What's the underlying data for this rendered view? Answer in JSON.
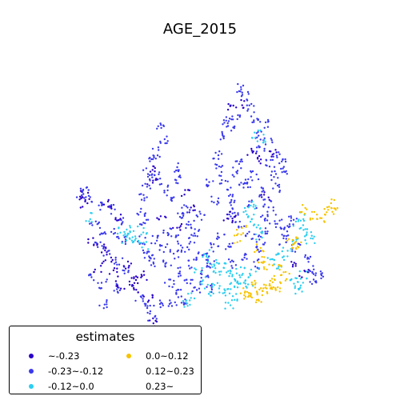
{
  "title": "AGE_2015",
  "legend": {
    "title": "estimates",
    "items": [
      {
        "label": "~-0.23",
        "color": "#2a00c9"
      },
      {
        "label": "-0.23~-0.12",
        "color": "#3a39ee"
      },
      {
        "label": "-0.12~0.0",
        "color": "#2ccef0"
      },
      {
        "label": "0.0~0.12",
        "color": "#f7c300"
      },
      {
        "label": "0.12~0.23",
        "color": "none"
      },
      {
        "label": "0.23~",
        "color": "none"
      }
    ]
  },
  "points": {
    "dark_blue": [
      [
        106,
        243
      ],
      [
        104,
        254
      ],
      [
        135,
        255
      ],
      [
        148,
        270
      ],
      [
        172,
        348
      ],
      [
        160,
        330
      ],
      [
        165,
        352
      ],
      [
        185,
        372
      ],
      [
        190,
        404
      ],
      [
        188,
        210
      ],
      [
        190,
        226
      ],
      [
        232,
        242
      ],
      [
        238,
        262
      ],
      [
        290,
        135
      ],
      [
        300,
        130
      ],
      [
        315,
        190
      ],
      [
        322,
        200
      ],
      [
        332,
        245
      ],
      [
        340,
        190
      ],
      [
        135,
        322
      ],
      [
        142,
        340
      ],
      [
        150,
        356
      ],
      [
        168,
        360
      ],
      [
        178,
        345
      ],
      [
        202,
        270
      ],
      [
        222,
        285
      ],
      [
        282,
        270
      ],
      [
        292,
        275
      ],
      [
        370,
        330
      ],
      [
        380,
        342
      ],
      [
        122,
        335
      ],
      [
        116,
        302
      ],
      [
        128,
        310
      ]
    ],
    "mid_blue": [
      [
        100,
        242
      ],
      [
        110,
        248
      ],
      [
        105,
        238
      ],
      [
        125,
        258
      ],
      [
        140,
        262
      ],
      [
        152,
        275
      ],
      [
        118,
        278
      ],
      [
        130,
        288
      ],
      [
        145,
        292
      ],
      [
        155,
        300
      ],
      [
        122,
        305
      ],
      [
        134,
        315
      ],
      [
        148,
        325
      ],
      [
        158,
        338
      ],
      [
        112,
        345
      ],
      [
        128,
        355
      ],
      [
        145,
        360
      ],
      [
        178,
        300
      ],
      [
        183,
        318
      ],
      [
        192,
        328
      ],
      [
        175,
        370
      ],
      [
        182,
        380
      ],
      [
        190,
        395
      ],
      [
        198,
        380
      ],
      [
        185,
        320
      ],
      [
        195,
        300
      ],
      [
        205,
        310
      ],
      [
        210,
        330
      ],
      [
        218,
        318
      ],
      [
        225,
        340
      ],
      [
        235,
        350
      ],
      [
        245,
        360
      ],
      [
        255,
        348
      ],
      [
        262,
        360
      ],
      [
        212,
        355
      ],
      [
        222,
        368
      ],
      [
        232,
        375
      ],
      [
        200,
        160
      ],
      [
        205,
        175
      ],
      [
        195,
        190
      ],
      [
        190,
        200
      ],
      [
        185,
        215
      ],
      [
        182,
        230
      ],
      [
        178,
        245
      ],
      [
        176,
        265
      ],
      [
        180,
        280
      ],
      [
        195,
        220
      ],
      [
        205,
        235
      ],
      [
        212,
        250
      ],
      [
        218,
        210
      ],
      [
        225,
        225
      ],
      [
        228,
        270
      ],
      [
        238,
        280
      ],
      [
        242,
        300
      ],
      [
        210,
        290
      ],
      [
        220,
        300
      ],
      [
        232,
        312
      ],
      [
        244,
        290
      ],
      [
        250,
        270
      ],
      [
        262,
        230
      ],
      [
        268,
        250
      ],
      [
        272,
        195
      ],
      [
        275,
        210
      ],
      [
        280,
        225
      ],
      [
        285,
        240
      ],
      [
        288,
        255
      ],
      [
        292,
        265
      ],
      [
        296,
        215
      ],
      [
        300,
        200
      ],
      [
        305,
        230
      ],
      [
        278,
        170
      ],
      [
        282,
        150
      ],
      [
        288,
        160
      ],
      [
        295,
        145
      ],
      [
        302,
        110
      ],
      [
        308,
        120
      ],
      [
        312,
        135
      ],
      [
        318,
        150
      ],
      [
        322,
        170
      ],
      [
        325,
        185
      ],
      [
        330,
        155
      ],
      [
        335,
        175
      ],
      [
        338,
        205
      ],
      [
        342,
        220
      ],
      [
        346,
        195
      ],
      [
        352,
        205
      ],
      [
        355,
        212
      ],
      [
        345,
        235
      ],
      [
        335,
        255
      ],
      [
        340,
        265
      ],
      [
        332,
        275
      ],
      [
        348,
        280
      ],
      [
        355,
        290
      ],
      [
        352,
        300
      ],
      [
        360,
        285
      ],
      [
        365,
        275
      ],
      [
        370,
        310
      ],
      [
        382,
        325
      ],
      [
        388,
        338
      ],
      [
        392,
        350
      ],
      [
        398,
        345
      ],
      [
        300,
        280
      ],
      [
        312,
        295
      ],
      [
        320,
        310
      ],
      [
        305,
        320
      ],
      [
        292,
        330
      ],
      [
        285,
        310
      ],
      [
        275,
        295
      ],
      [
        268,
        310
      ],
      [
        262,
        322
      ],
      [
        250,
        320
      ],
      [
        258,
        335
      ],
      [
        240,
        330
      ],
      [
        320,
        330
      ],
      [
        330,
        290
      ],
      [
        326,
        300
      ],
      [
        315,
        255
      ],
      [
        325,
        240
      ],
      [
        318,
        220
      ],
      [
        310,
        230
      ],
      [
        128,
        380
      ],
      [
        215,
        380
      ],
      [
        232,
        262
      ]
    ],
    "cyan": [
      [
        112,
        272
      ],
      [
        150,
        290
      ],
      [
        158,
        298
      ],
      [
        165,
        296
      ],
      [
        172,
        302
      ],
      [
        180,
        306
      ],
      [
        178,
        288
      ],
      [
        162,
        285
      ],
      [
        258,
        318
      ],
      [
        264,
        330
      ],
      [
        270,
        340
      ],
      [
        276,
        325
      ],
      [
        282,
        335
      ],
      [
        288,
        345
      ],
      [
        294,
        352
      ],
      [
        300,
        338
      ],
      [
        306,
        345
      ],
      [
        312,
        355
      ],
      [
        318,
        340
      ],
      [
        270,
        355
      ],
      [
        262,
        365
      ],
      [
        278,
        365
      ],
      [
        290,
        360
      ],
      [
        300,
        358
      ],
      [
        248,
        340
      ],
      [
        254,
        352
      ],
      [
        320,
        168
      ],
      [
        326,
        174
      ],
      [
        318,
        255
      ],
      [
        310,
        265
      ],
      [
        316,
        272
      ],
      [
        322,
        280
      ],
      [
        340,
        322
      ],
      [
        346,
        330
      ],
      [
        352,
        320
      ],
      [
        360,
        315
      ],
      [
        372,
        280
      ],
      [
        378,
        270
      ],
      [
        384,
        285
      ],
      [
        388,
        300
      ],
      [
        378,
        295
      ],
      [
        370,
        300
      ],
      [
        366,
        350
      ],
      [
        374,
        358
      ],
      [
        380,
        345
      ],
      [
        372,
        365
      ],
      [
        286,
        380
      ],
      [
        292,
        372
      ],
      [
        232,
        378
      ],
      [
        238,
        372
      ],
      [
        322,
        296
      ]
    ],
    "yellow": [
      [
        302,
        288
      ],
      [
        296,
        298
      ],
      [
        318,
        350
      ],
      [
        324,
        360
      ],
      [
        330,
        365
      ],
      [
        336,
        355
      ],
      [
        342,
        348
      ],
      [
        310,
        365
      ],
      [
        316,
        372
      ],
      [
        306,
        372
      ],
      [
        325,
        375
      ],
      [
        350,
        360
      ],
      [
        356,
        345
      ],
      [
        364,
        300
      ],
      [
        372,
        298
      ],
      [
        370,
        308
      ],
      [
        392,
        270
      ],
      [
        400,
        278
      ],
      [
        408,
        265
      ],
      [
        414,
        255
      ],
      [
        416,
        262
      ],
      [
        378,
        262
      ],
      [
        352,
        335
      ],
      [
        328,
        326
      ],
      [
        324,
        310
      ],
      [
        345,
        356
      ],
      [
        336,
        332
      ]
    ]
  }
}
